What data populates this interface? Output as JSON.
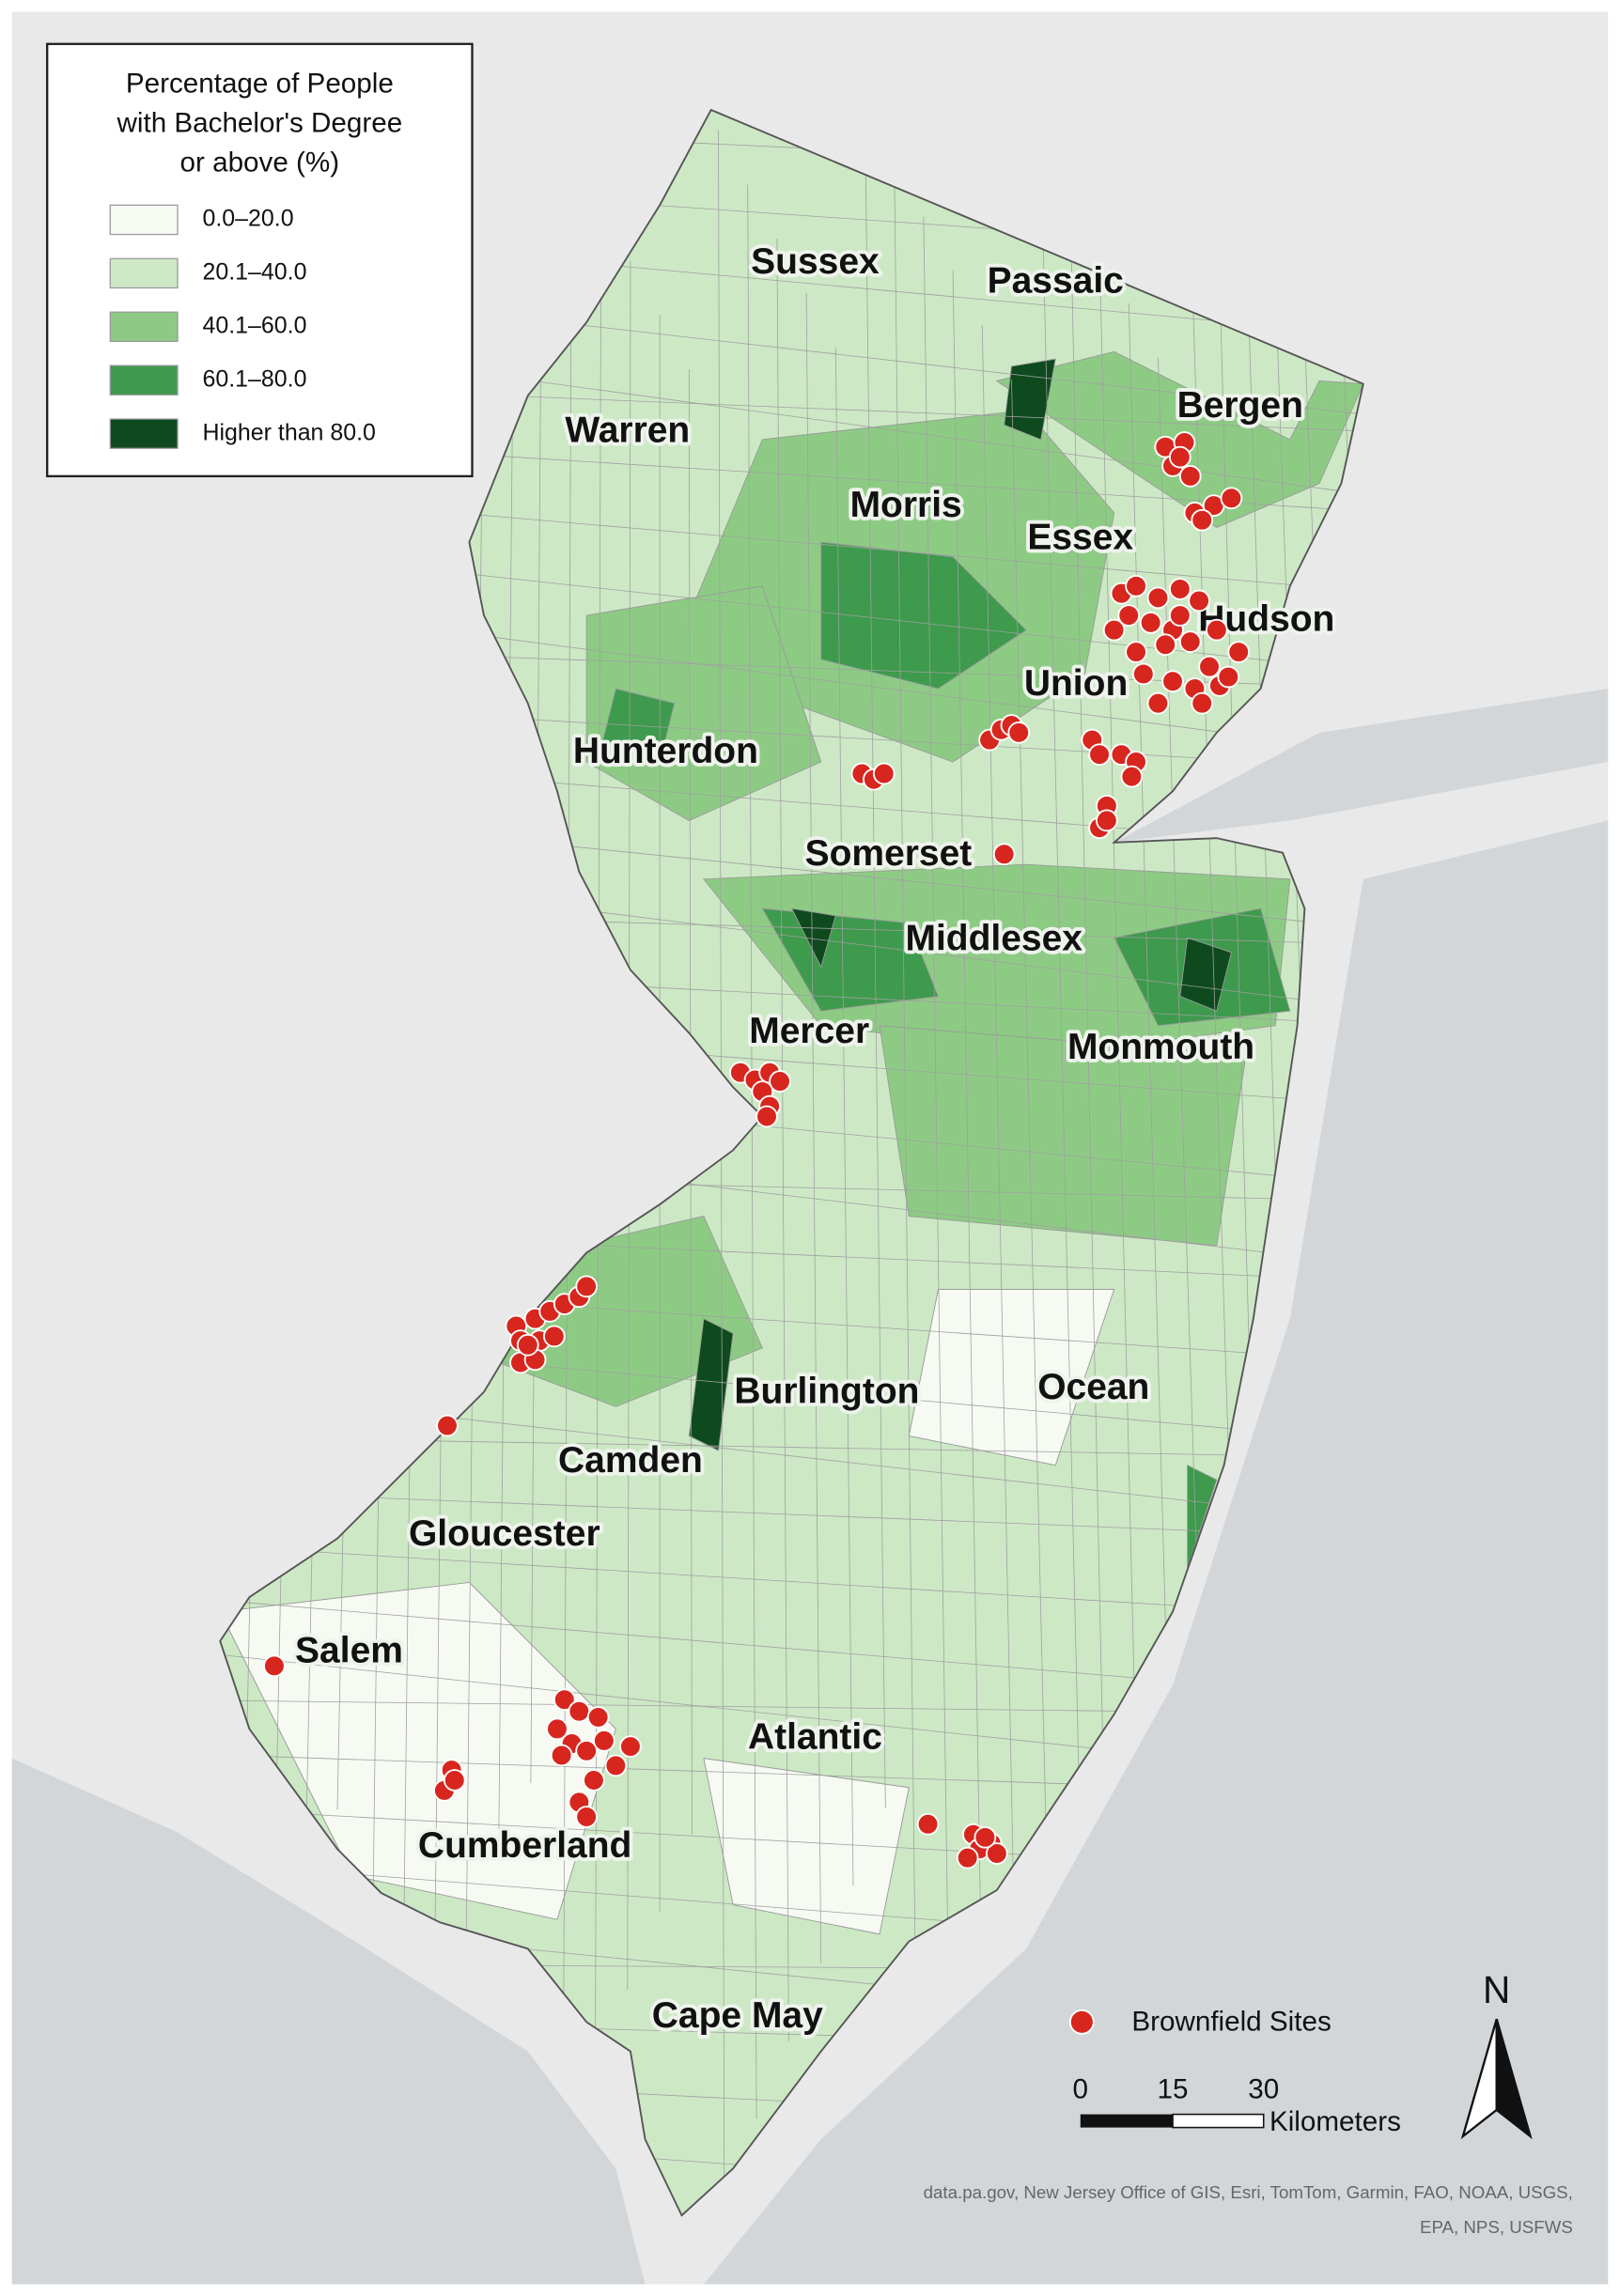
{
  "legend": {
    "title_lines": [
      "Percentage of People",
      "with Bachelor's Degree",
      "or above (%)"
    ],
    "items": [
      {
        "label": "0.0–20.0",
        "color": "#f6faf3"
      },
      {
        "label": "20.1–40.0",
        "color": "#cde8c5"
      },
      {
        "label": "40.1–60.0",
        "color": "#8dcb84"
      },
      {
        "label": "60.1–80.0",
        "color": "#3e9a4d"
      },
      {
        "label": "Higher than 80.0",
        "color": "#0e4a1d"
      }
    ]
  },
  "counties": [
    {
      "label": "Sussex"
    },
    {
      "label": "Passaic"
    },
    {
      "label": "Bergen"
    },
    {
      "label": "Warren"
    },
    {
      "label": "Morris"
    },
    {
      "label": "Essex"
    },
    {
      "label": "Hudson"
    },
    {
      "label": "Union"
    },
    {
      "label": "Hunterdon"
    },
    {
      "label": "Somerset"
    },
    {
      "label": "Middlesex"
    },
    {
      "label": "Mercer"
    },
    {
      "label": "Monmouth"
    },
    {
      "label": "Burlington"
    },
    {
      "label": "Ocean"
    },
    {
      "label": "Camden"
    },
    {
      "label": "Gloucester"
    },
    {
      "label": "Salem"
    },
    {
      "label": "Atlantic"
    },
    {
      "label": "Cumberland"
    },
    {
      "label": "Cape May"
    }
  ],
  "sites_legend": {
    "label": "Brownfield Sites",
    "color": "#d7261e"
  },
  "scale_bar": {
    "labels": [
      "0",
      "15",
      "30"
    ],
    "unit": "Kilometers"
  },
  "north": "N",
  "attribution": [
    "data.pa.gov, New Jersey Office of GIS, Esri, TomTom, Garmin, FAO, NOAA, USGS,",
    "EPA, NPS, USFWS"
  ]
}
